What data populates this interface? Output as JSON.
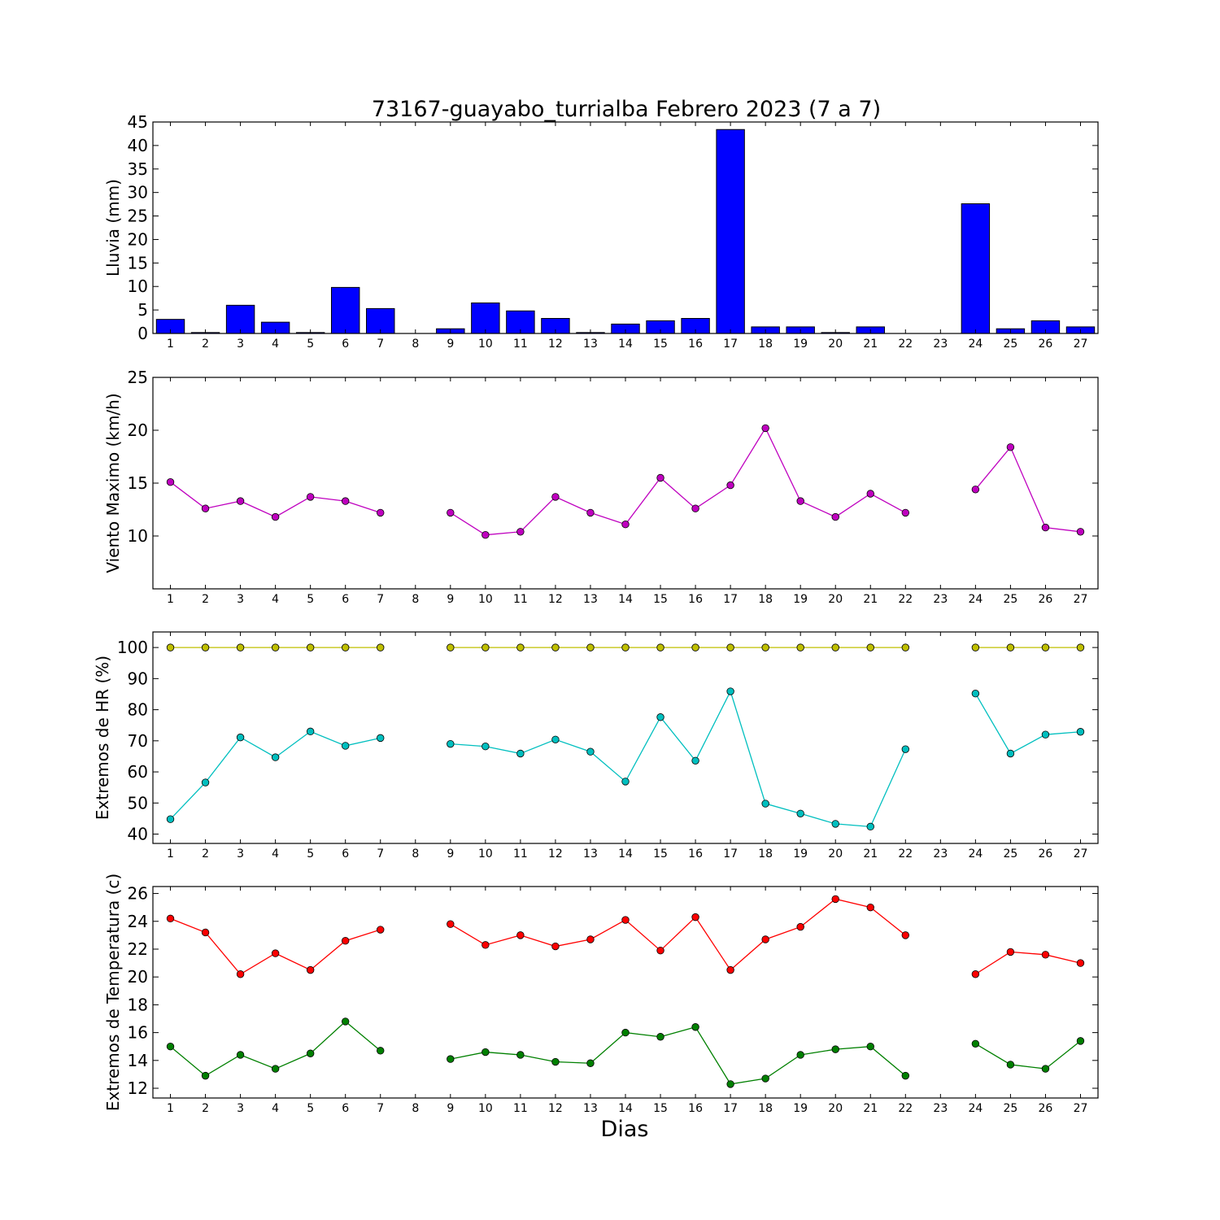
{
  "title": "73167-guayabo_turrialba Febrero 2023  (7 a 7)",
  "x_label": "Dias",
  "colors": {
    "rain_bar": "#0000ff",
    "wind": "#bf00bf",
    "hr_max": "#bfbf00",
    "hr_min": "#00bfbf",
    "temp_max": "#ff0000",
    "temp_min": "#008000"
  },
  "chart_data": [
    {
      "type": "bar",
      "name": "rain",
      "ylabel": "Lluvia (mm)",
      "ylim": [
        0,
        45
      ],
      "yticks": [
        0,
        5,
        10,
        15,
        20,
        25,
        30,
        35,
        40,
        45
      ],
      "categories": [
        1,
        2,
        3,
        4,
        5,
        6,
        7,
        8,
        9,
        10,
        11,
        12,
        13,
        14,
        15,
        16,
        17,
        18,
        19,
        20,
        21,
        22,
        23,
        24,
        25,
        26,
        27
      ],
      "values": [
        3.0,
        0.2,
        6.0,
        2.4,
        0.2,
        9.8,
        5.3,
        0.0,
        1.0,
        6.5,
        4.8,
        3.2,
        0.2,
        2.0,
        2.7,
        3.2,
        43.4,
        1.4,
        1.4,
        0.2,
        1.4,
        0.0,
        0.0,
        27.6,
        1.0,
        2.7,
        1.4
      ]
    },
    {
      "type": "line",
      "name": "wind",
      "ylabel": "Viento Maximo (km/h)",
      "ylim": [
        5,
        25
      ],
      "yticks": [
        10,
        15,
        20,
        25
      ],
      "x": [
        1,
        2,
        3,
        4,
        5,
        6,
        7,
        8,
        9,
        10,
        11,
        12,
        13,
        14,
        15,
        16,
        17,
        18,
        19,
        20,
        21,
        22,
        23,
        24,
        25,
        26,
        27
      ],
      "series": [
        {
          "color_key": "wind",
          "values": [
            15.1,
            12.6,
            13.3,
            11.8,
            13.7,
            13.3,
            12.2,
            null,
            12.2,
            10.1,
            10.4,
            13.7,
            12.2,
            11.1,
            15.5,
            12.6,
            14.8,
            20.2,
            13.3,
            11.8,
            14.0,
            12.2,
            null,
            14.4,
            18.4,
            10.8,
            10.4
          ]
        }
      ]
    },
    {
      "type": "line",
      "name": "humidity",
      "ylabel": "Extremos de HR (%)",
      "ylim": [
        37,
        105
      ],
      "yticks": [
        40,
        50,
        60,
        70,
        80,
        90,
        100
      ],
      "x": [
        1,
        2,
        3,
        4,
        5,
        6,
        7,
        8,
        9,
        10,
        11,
        12,
        13,
        14,
        15,
        16,
        17,
        18,
        19,
        20,
        21,
        22,
        23,
        24,
        25,
        26,
        27
      ],
      "series": [
        {
          "color_key": "hr_max",
          "values": [
            100,
            100,
            100,
            100,
            100,
            100,
            100,
            null,
            100,
            100,
            100,
            100,
            100,
            100,
            100,
            100,
            100,
            100,
            100,
            100,
            100,
            100,
            null,
            100,
            100,
            100,
            100
          ]
        },
        {
          "color_key": "hr_min",
          "values": [
            44.8,
            56.6,
            71.1,
            64.7,
            73.0,
            68.4,
            70.9,
            null,
            69.0,
            68.2,
            65.9,
            70.4,
            66.5,
            56.9,
            77.6,
            63.6,
            85.9,
            49.8,
            46.6,
            43.3,
            42.4,
            67.3,
            null,
            85.2,
            65.9,
            72.0,
            72.9
          ]
        }
      ]
    },
    {
      "type": "line",
      "name": "temperature",
      "ylabel": "Extremos de Temperatura (c)",
      "ylim": [
        11.3,
        26.5
      ],
      "yticks": [
        12,
        14,
        16,
        18,
        20,
        22,
        24,
        26
      ],
      "x": [
        1,
        2,
        3,
        4,
        5,
        6,
        7,
        8,
        9,
        10,
        11,
        12,
        13,
        14,
        15,
        16,
        17,
        18,
        19,
        20,
        21,
        22,
        23,
        24,
        25,
        26,
        27
      ],
      "series": [
        {
          "color_key": "temp_max",
          "values": [
            24.2,
            23.2,
            20.2,
            21.7,
            20.5,
            22.6,
            23.4,
            null,
            23.8,
            22.3,
            23.0,
            22.2,
            22.7,
            24.1,
            21.9,
            24.3,
            20.5,
            22.7,
            23.6,
            25.6,
            25.0,
            23.0,
            null,
            20.2,
            21.8,
            21.6,
            21.0
          ]
        },
        {
          "color_key": "temp_min",
          "values": [
            15.0,
            12.9,
            14.4,
            13.4,
            14.5,
            16.8,
            14.7,
            null,
            14.1,
            14.6,
            14.4,
            13.9,
            13.8,
            16.0,
            15.7,
            16.4,
            12.3,
            12.7,
            14.4,
            14.8,
            15.0,
            12.9,
            null,
            15.2,
            13.7,
            13.4,
            15.4
          ]
        }
      ]
    }
  ]
}
